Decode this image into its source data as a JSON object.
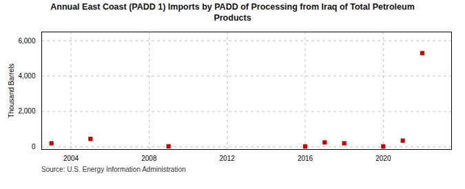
{
  "chart_data": {
    "type": "scatter",
    "title": "Annual East Coast (PADD 1) Imports by PADD of Processing from Iraq of Total Petroleum\nProducts",
    "ylabel": "Thousand Barrels",
    "source": "Source: U.S. Energy Information Administration",
    "x": [
      2003,
      2005,
      2009,
      2016,
      2017,
      2018,
      2020,
      2021,
      2022
    ],
    "values": [
      200,
      450,
      30,
      20,
      250,
      200,
      20,
      350,
      5300
    ],
    "color": "#cc0000",
    "marker": "square",
    "xlim": [
      2002.5,
      2023.5
    ],
    "ylim": [
      -150,
      6500
    ],
    "xticks": [
      2004,
      2008,
      2012,
      2016,
      2020
    ],
    "yticks": [
      0,
      {
        "value": 2000,
        "label": "2,000"
      },
      {
        "value": 4000,
        "label": "4,000"
      },
      {
        "value": 6000,
        "label": "6,000"
      }
    ],
    "grid": true
  }
}
